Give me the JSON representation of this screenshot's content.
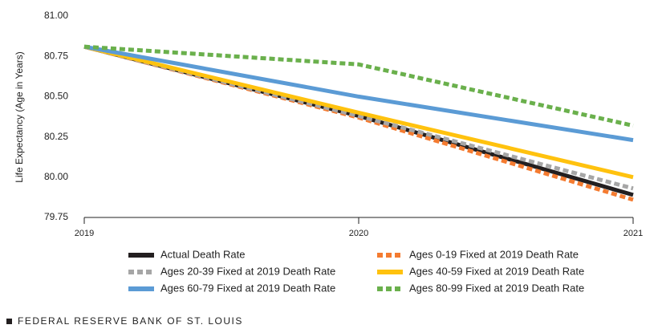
{
  "chart_data": {
    "type": "line",
    "y_label": "Life Expectancy (Age in Years)",
    "x": [
      2019,
      2020,
      2021
    ],
    "xlim": [
      2019,
      2021
    ],
    "xticks": [
      2019,
      2020,
      2021
    ],
    "ylim": [
      79.75,
      81.0
    ],
    "yticks": [
      {
        "value": 79.75,
        "label": "79.75"
      },
      {
        "value": 80.0,
        "label": "80.00"
      },
      {
        "value": 80.25,
        "label": "80.25"
      },
      {
        "value": 80.5,
        "label": "80.50"
      },
      {
        "value": 80.75,
        "label": "80.75"
      },
      {
        "value": 81.0,
        "label": "81.00"
      }
    ],
    "grid": false,
    "series": [
      {
        "name": "Actual Death Rate",
        "color": "#231f20",
        "style": "solid",
        "values": [
          80.81,
          80.38,
          79.89
        ]
      },
      {
        "name": "Ages 0-19 Fixed at 2019 Death Rate",
        "color": "#f47b30",
        "style": "dashed",
        "values": [
          80.81,
          80.37,
          79.86
        ]
      },
      {
        "name": "Ages 20-39 Fixed at 2019 Death Rate",
        "color": "#a6a6a6",
        "style": "dashed",
        "values": [
          80.81,
          80.38,
          79.93
        ]
      },
      {
        "name": "Ages 40-59 Fixed at 2019 Death Rate",
        "color": "#ffc20e",
        "style": "solid",
        "values": [
          80.81,
          80.4,
          80.0
        ]
      },
      {
        "name": "Ages 60-79 Fixed at 2019 Death Rate",
        "color": "#5b9bd5",
        "style": "solid",
        "values": [
          80.81,
          80.5,
          80.23
        ]
      },
      {
        "name": "Ages 80-99 Fixed at 2019 Death Rate",
        "color": "#6ab04c",
        "style": "dashed",
        "values": [
          80.81,
          80.7,
          80.32
        ]
      }
    ]
  },
  "footer": "FEDERAL RESERVE BANK OF ST. LOUIS"
}
